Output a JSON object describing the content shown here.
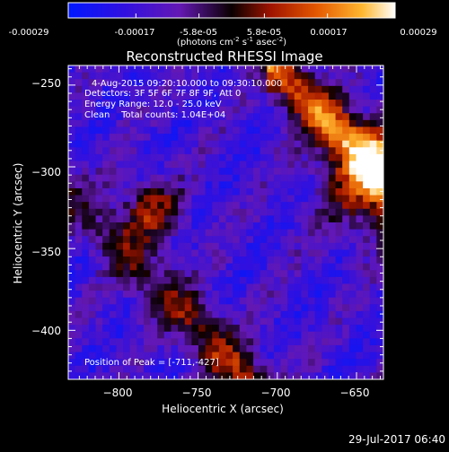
{
  "colorbar": {
    "tick_labels": [
      "-0.00029",
      "-0.00017",
      "-5.8e-05",
      "5.8e-05",
      "0.00017",
      "0.00029"
    ],
    "range": [
      -0.00029,
      0.00029
    ],
    "units_main": "(photons cm",
    "units_exp1": "-2",
    "units_mid": " s",
    "units_exp2": "-1",
    "units_end": " asec",
    "units_exp3": "-2",
    "units_close": ")"
  },
  "chart_data": {
    "type": "heatmap",
    "title": "Reconstructed RHESSI Image",
    "xlabel": "Heliocentric X (arcsec)",
    "ylabel": "Heliocentric Y (arcsec)",
    "xlim": [
      -832,
      -633
    ],
    "ylim": [
      -430,
      -238
    ],
    "x_ticks": [
      -800,
      -750,
      -700,
      -650
    ],
    "y_ticks": [
      -400,
      -350,
      -300,
      -250
    ],
    "x_tick_labels": [
      "−800",
      "−750",
      "−700",
      "−650"
    ],
    "y_tick_labels": [
      "−400",
      "−350",
      "−300",
      "−250"
    ],
    "annotations": {
      "time_range": "4-Aug-2015 09:20:10.000 to 09:30:10.000",
      "detectors": "Detectors: 3F 5F 6F 7F 8F 9F, Att 0",
      "energy": "Energy Range: 12.0 - 25.0 keV",
      "clean": "Clean    Total counts: 1.04E+04",
      "peak": "Position of Peak = [-711,-427]"
    },
    "peak_position": [
      -711,
      -427
    ]
  },
  "footer": {
    "timestamp": "29-Jul-2017 06:40"
  }
}
